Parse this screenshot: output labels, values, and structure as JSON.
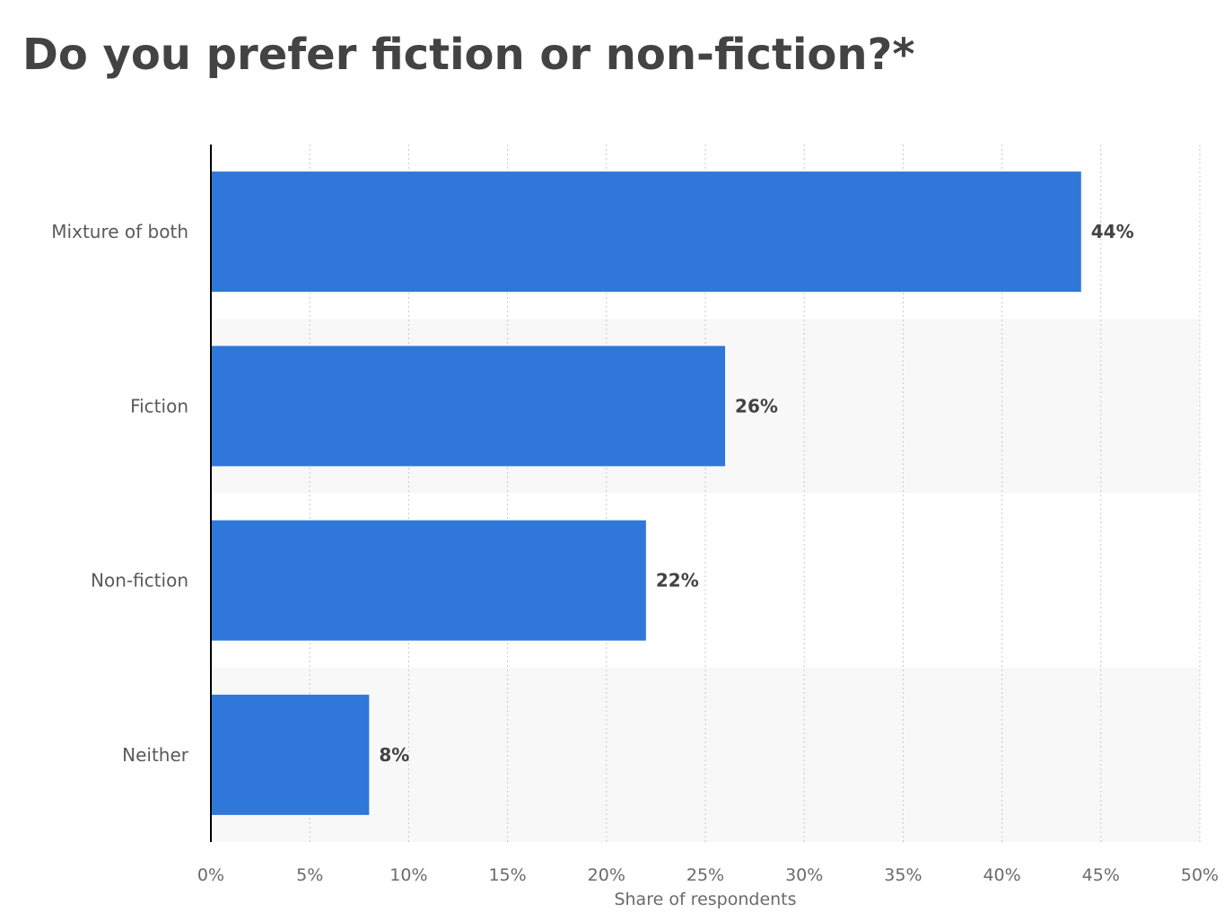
{
  "chart_data": {
    "type": "bar",
    "orientation": "horizontal",
    "title": "Do you prefer fiction or non-fiction?*",
    "xlabel": "Share of respondents",
    "ylabel": "",
    "categories": [
      "Mixture of both",
      "Fiction",
      "Non-fiction",
      "Neither"
    ],
    "values": [
      44,
      26,
      22,
      8
    ],
    "value_labels": [
      "44%",
      "26%",
      "22%",
      "8%"
    ],
    "xlim": [
      0,
      50
    ],
    "x_ticks": [
      0,
      5,
      10,
      15,
      20,
      25,
      30,
      35,
      40,
      45,
      50
    ],
    "x_tick_labels": [
      "0%",
      "5%",
      "10%",
      "15%",
      "20%",
      "25%",
      "30%",
      "35%",
      "40%",
      "45%",
      "50%"
    ],
    "grid": true,
    "legend": "none",
    "bar_color": "#2f78d9",
    "band_color": "#f8f8f8",
    "grid_color": "#c8c8c8",
    "axis_color": "#000000"
  }
}
